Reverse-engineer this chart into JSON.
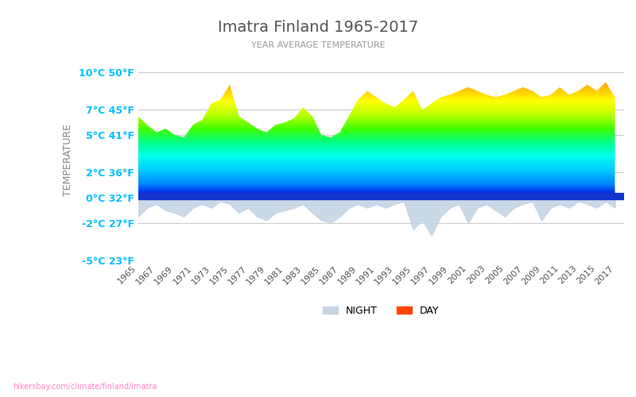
{
  "title": "Imatra Finland 1965-2017",
  "subtitle": "YEAR AVERAGE TEMPERATURE",
  "ylabel": "TEMPERATURE",
  "xlabel_years": [
    "1965",
    "1967",
    "1969",
    "1971",
    "1973",
    "1975",
    "1977",
    "1979",
    "1981",
    "1983",
    "1985",
    "1987",
    "1989",
    "1991",
    "1993",
    "1995",
    "1997",
    "1999",
    "2001",
    "2003",
    "2005",
    "2007",
    "2009",
    "2011",
    "2013",
    "2015",
    "2017"
  ],
  "yticks_celsius": [
    10,
    7,
    5,
    2,
    0,
    -2,
    -5
  ],
  "yticks_fahrenheit": [
    50,
    45,
    41,
    36,
    32,
    27,
    23
  ],
  "ylim": [
    -5,
    11
  ],
  "xlim": [
    1965,
    2018
  ],
  "watermark": "hikersbay.com/climate/finland/imatra",
  "day_color": "#FF4500",
  "night_color": "#B0C4DE",
  "title_color": "#555555",
  "subtitle_color": "#888888",
  "axis_label_color": "#00BFFF",
  "grid_color": "#cccccc",
  "day_data": {
    "years": [
      1965,
      1966,
      1967,
      1968,
      1969,
      1970,
      1971,
      1972,
      1973,
      1974,
      1975,
      1976,
      1977,
      1978,
      1979,
      1980,
      1981,
      1982,
      1983,
      1984,
      1985,
      1986,
      1987,
      1988,
      1989,
      1990,
      1991,
      1992,
      1993,
      1994,
      1995,
      1996,
      1997,
      1998,
      1999,
      2000,
      2001,
      2002,
      2003,
      2004,
      2005,
      2006,
      2007,
      2008,
      2009,
      2010,
      2011,
      2012,
      2013,
      2014,
      2015,
      2016,
      2017
    ],
    "values": [
      6.5,
      5.8,
      5.2,
      5.5,
      5.0,
      4.8,
      5.8,
      6.2,
      7.5,
      7.8,
      9.0,
      6.5,
      6.0,
      5.5,
      5.2,
      5.8,
      6.0,
      6.3,
      7.2,
      6.5,
      5.0,
      4.8,
      5.2,
      6.5,
      7.8,
      8.5,
      8.0,
      7.5,
      7.2,
      7.8,
      8.5,
      7.0,
      7.5,
      8.0,
      8.2,
      8.5,
      8.8,
      8.5,
      8.2,
      8.0,
      8.2,
      8.5,
      8.8,
      8.5,
      8.0,
      8.2,
      8.8,
      8.2,
      8.5,
      9.0,
      8.5,
      9.2,
      8.0
    ]
  },
  "night_data": {
    "years": [
      1965,
      1966,
      1967,
      1968,
      1969,
      1970,
      1971,
      1972,
      1973,
      1974,
      1975,
      1976,
      1977,
      1978,
      1979,
      1980,
      1981,
      1982,
      1983,
      1984,
      1985,
      1986,
      1987,
      1988,
      1989,
      1990,
      1991,
      1992,
      1993,
      1994,
      1995,
      1996,
      1997,
      1998,
      1999,
      2000,
      2001,
      2002,
      2003,
      2004,
      2005,
      2006,
      2007,
      2008,
      2009,
      2010,
      2011,
      2012,
      2013,
      2014,
      2015,
      2016,
      2017
    ],
    "values": [
      -1.5,
      -0.8,
      -0.5,
      -1.0,
      -1.2,
      -1.5,
      -0.8,
      -0.5,
      -0.8,
      -0.3,
      -0.5,
      -1.2,
      -0.8,
      -1.5,
      -1.8,
      -1.2,
      -1.0,
      -0.8,
      -0.5,
      -1.2,
      -1.8,
      -2.0,
      -1.5,
      -0.8,
      -0.5,
      -0.8,
      -0.5,
      -0.8,
      -0.5,
      -0.3,
      -2.5,
      -1.8,
      -3.0,
      -1.5,
      -0.8,
      -0.5,
      -2.0,
      -0.8,
      -0.5,
      -1.0,
      -1.5,
      -0.8,
      -0.5,
      -0.3,
      -1.8,
      -0.8,
      -0.5,
      -0.8,
      -0.3,
      -0.5,
      -0.8,
      -0.3,
      -0.8
    ]
  }
}
